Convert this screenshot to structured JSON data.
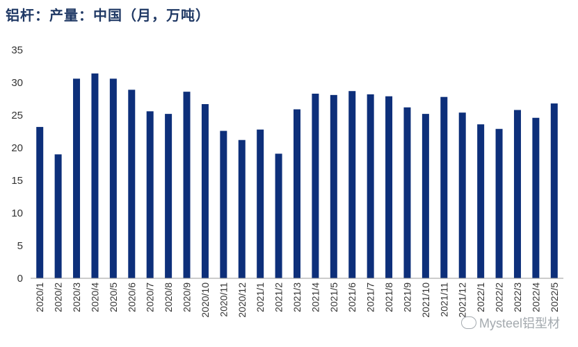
{
  "title": "铝杆：产量：中国（月，万吨）",
  "watermark": "Mysteel铝型材",
  "colors": {
    "bar": "#0d2f7a",
    "axis": "#999999",
    "title": "#1f3864"
  },
  "chart_data": {
    "type": "bar",
    "title": "铝杆：产量：中国（月，万吨）",
    "xlabel": "",
    "ylabel": "",
    "ylim": [
      0,
      35
    ],
    "yticks": [
      0,
      5,
      10,
      15,
      20,
      25,
      30,
      35
    ],
    "grid": false,
    "categories": [
      "2020/1",
      "2020/2",
      "2020/3",
      "2020/4",
      "2020/5",
      "2020/6",
      "2020/7",
      "2020/8",
      "2020/9",
      "2020/10",
      "2020/11",
      "2020/12",
      "2021/1",
      "2021/2",
      "2021/3",
      "2021/4",
      "2021/5",
      "2021/6",
      "2021/7",
      "2021/8",
      "2021/9",
      "2021/10",
      "2021/11",
      "2021/12",
      "2022/1",
      "2022/2",
      "2022/3",
      "2022/4",
      "2022/5"
    ],
    "values": [
      23.2,
      19.0,
      30.6,
      31.4,
      30.6,
      28.9,
      25.6,
      25.2,
      28.6,
      26.7,
      22.6,
      21.2,
      22.8,
      19.1,
      25.9,
      28.3,
      28.1,
      28.7,
      28.2,
      27.9,
      26.2,
      25.2,
      27.8,
      25.4,
      23.6,
      22.9,
      25.8,
      24.6,
      26.8
    ]
  }
}
